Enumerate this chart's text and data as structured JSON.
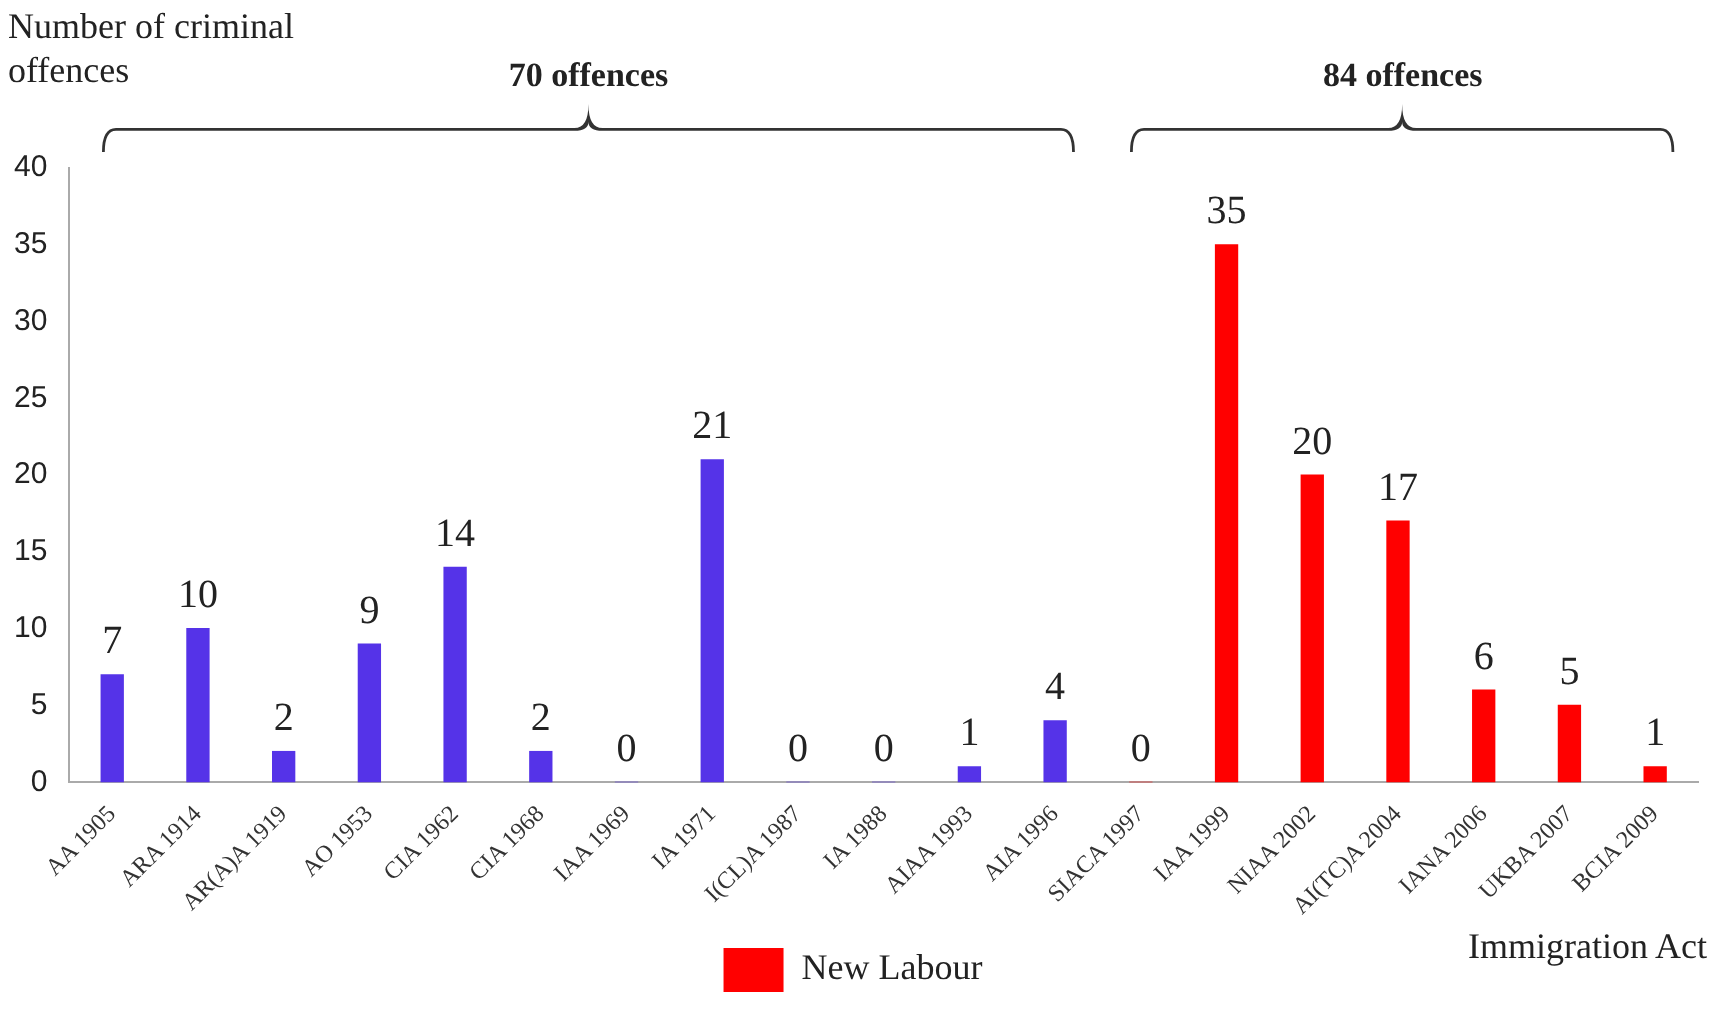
{
  "chart_data": {
    "type": "bar",
    "ylabel": "Number of criminal offences",
    "xlabel": "Immigration Act",
    "categories": [
      "AA 1905",
      "ARA 1914",
      "AR(A)A 1919",
      "AO 1953",
      "CIA 1962",
      "CIA 1968",
      "IAA 1969",
      "IA 1971",
      "I(CL)A 1987",
      "IA 1988",
      "AIAA 1993",
      "AIA 1996",
      "SIACA 1997",
      "IAA 1999",
      "NIAA 2002",
      "AI(TC)A 2004",
      "IANA 2006",
      "UKBA 2007",
      "BCIA 2009"
    ],
    "series": [
      {
        "color": "#5533e8",
        "values": [
          7,
          10,
          2,
          9,
          14,
          2,
          0,
          21,
          0,
          0,
          1,
          4,
          null,
          null,
          null,
          null,
          null,
          null,
          null
        ]
      },
      {
        "name": "New Labour",
        "color": "#ff0000",
        "values": [
          null,
          null,
          null,
          null,
          null,
          null,
          null,
          null,
          null,
          null,
          null,
          null,
          0,
          35,
          20,
          17,
          6,
          5,
          1
        ]
      }
    ],
    "annotations": [
      "70 offences",
      "84 offences"
    ],
    "ylim": [
      0,
      40
    ],
    "yticks": [
      0,
      5,
      10,
      15,
      20,
      25,
      30,
      35,
      40
    ],
    "grid": false,
    "legend": "bottom",
    "data_labels": true
  }
}
